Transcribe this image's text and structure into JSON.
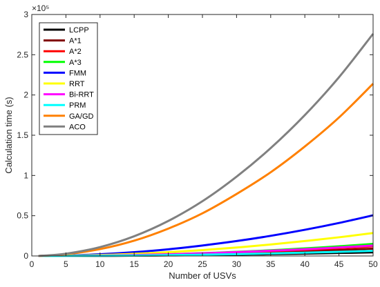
{
  "chart_data": {
    "type": "line",
    "xlabel": "Number of USVs",
    "ylabel": "Calculation time (s)",
    "y_exponent": "×10⁵",
    "y_multiplier": 100000,
    "xlim": [
      0,
      50
    ],
    "ylim": [
      0,
      300000
    ],
    "x_ticks": [
      "0",
      "5",
      "10",
      "15",
      "20",
      "25",
      "30",
      "35",
      "40",
      "45",
      "50"
    ],
    "y_ticks": [
      "0",
      "0.5",
      "1",
      "1.5",
      "2",
      "2.5",
      "3"
    ],
    "grid": false,
    "legend_position": "top-left",
    "x": [
      1,
      5,
      10,
      15,
      20,
      25,
      30,
      35,
      40,
      45,
      50
    ],
    "series": [
      {
        "name": "LCPP",
        "color": "#000000",
        "values": [
          0,
          30,
          150,
          380,
          700,
          1100,
          1600,
          2200,
          2900,
          3700,
          4500
        ]
      },
      {
        "name": "A*1",
        "color": "#800000",
        "values": [
          0,
          60,
          300,
          700,
          1300,
          2100,
          3100,
          4300,
          5700,
          7300,
          9000
        ]
      },
      {
        "name": "A*2",
        "color": "#ff0000",
        "values": [
          0,
          80,
          400,
          950,
          1750,
          2800,
          4100,
          5700,
          7600,
          9700,
          12000
        ]
      },
      {
        "name": "A*3",
        "color": "#00ff00",
        "values": [
          0,
          100,
          500,
          1200,
          2200,
          3500,
          5100,
          7100,
          9400,
          12000,
          15000
        ]
      },
      {
        "name": "FMM",
        "color": "#0000ff",
        "values": [
          0,
          500,
          2100,
          4700,
          8300,
          13000,
          18500,
          25000,
          32500,
          41000,
          50500
        ]
      },
      {
        "name": "RRT",
        "color": "#ffff00",
        "values": [
          0,
          300,
          1200,
          2700,
          4700,
          7300,
          10500,
          14200,
          18500,
          23200,
          28500
        ]
      },
      {
        "name": "Bi-RRT",
        "color": "#ff00ff",
        "values": [
          0,
          130,
          550,
          1200,
          2100,
          3300,
          4800,
          6500,
          8400,
          10600,
          13000
        ]
      },
      {
        "name": "PRM",
        "color": "#00ffff",
        "values": [
          0,
          60,
          250,
          580,
          1050,
          1600,
          2300,
          3150,
          4100,
          5150,
          6300
        ]
      },
      {
        "name": "GA/GD",
        "color": "#ff8000",
        "values": [
          0,
          2200,
          8500,
          19000,
          34000,
          53000,
          77000,
          104000,
          136000,
          172000,
          214000
        ]
      },
      {
        "name": "ACO",
        "color": "#808080",
        "values": [
          0,
          2800,
          11000,
          24500,
          43500,
          68000,
          98500,
          134000,
          175000,
          222000,
          276000
        ]
      }
    ]
  }
}
